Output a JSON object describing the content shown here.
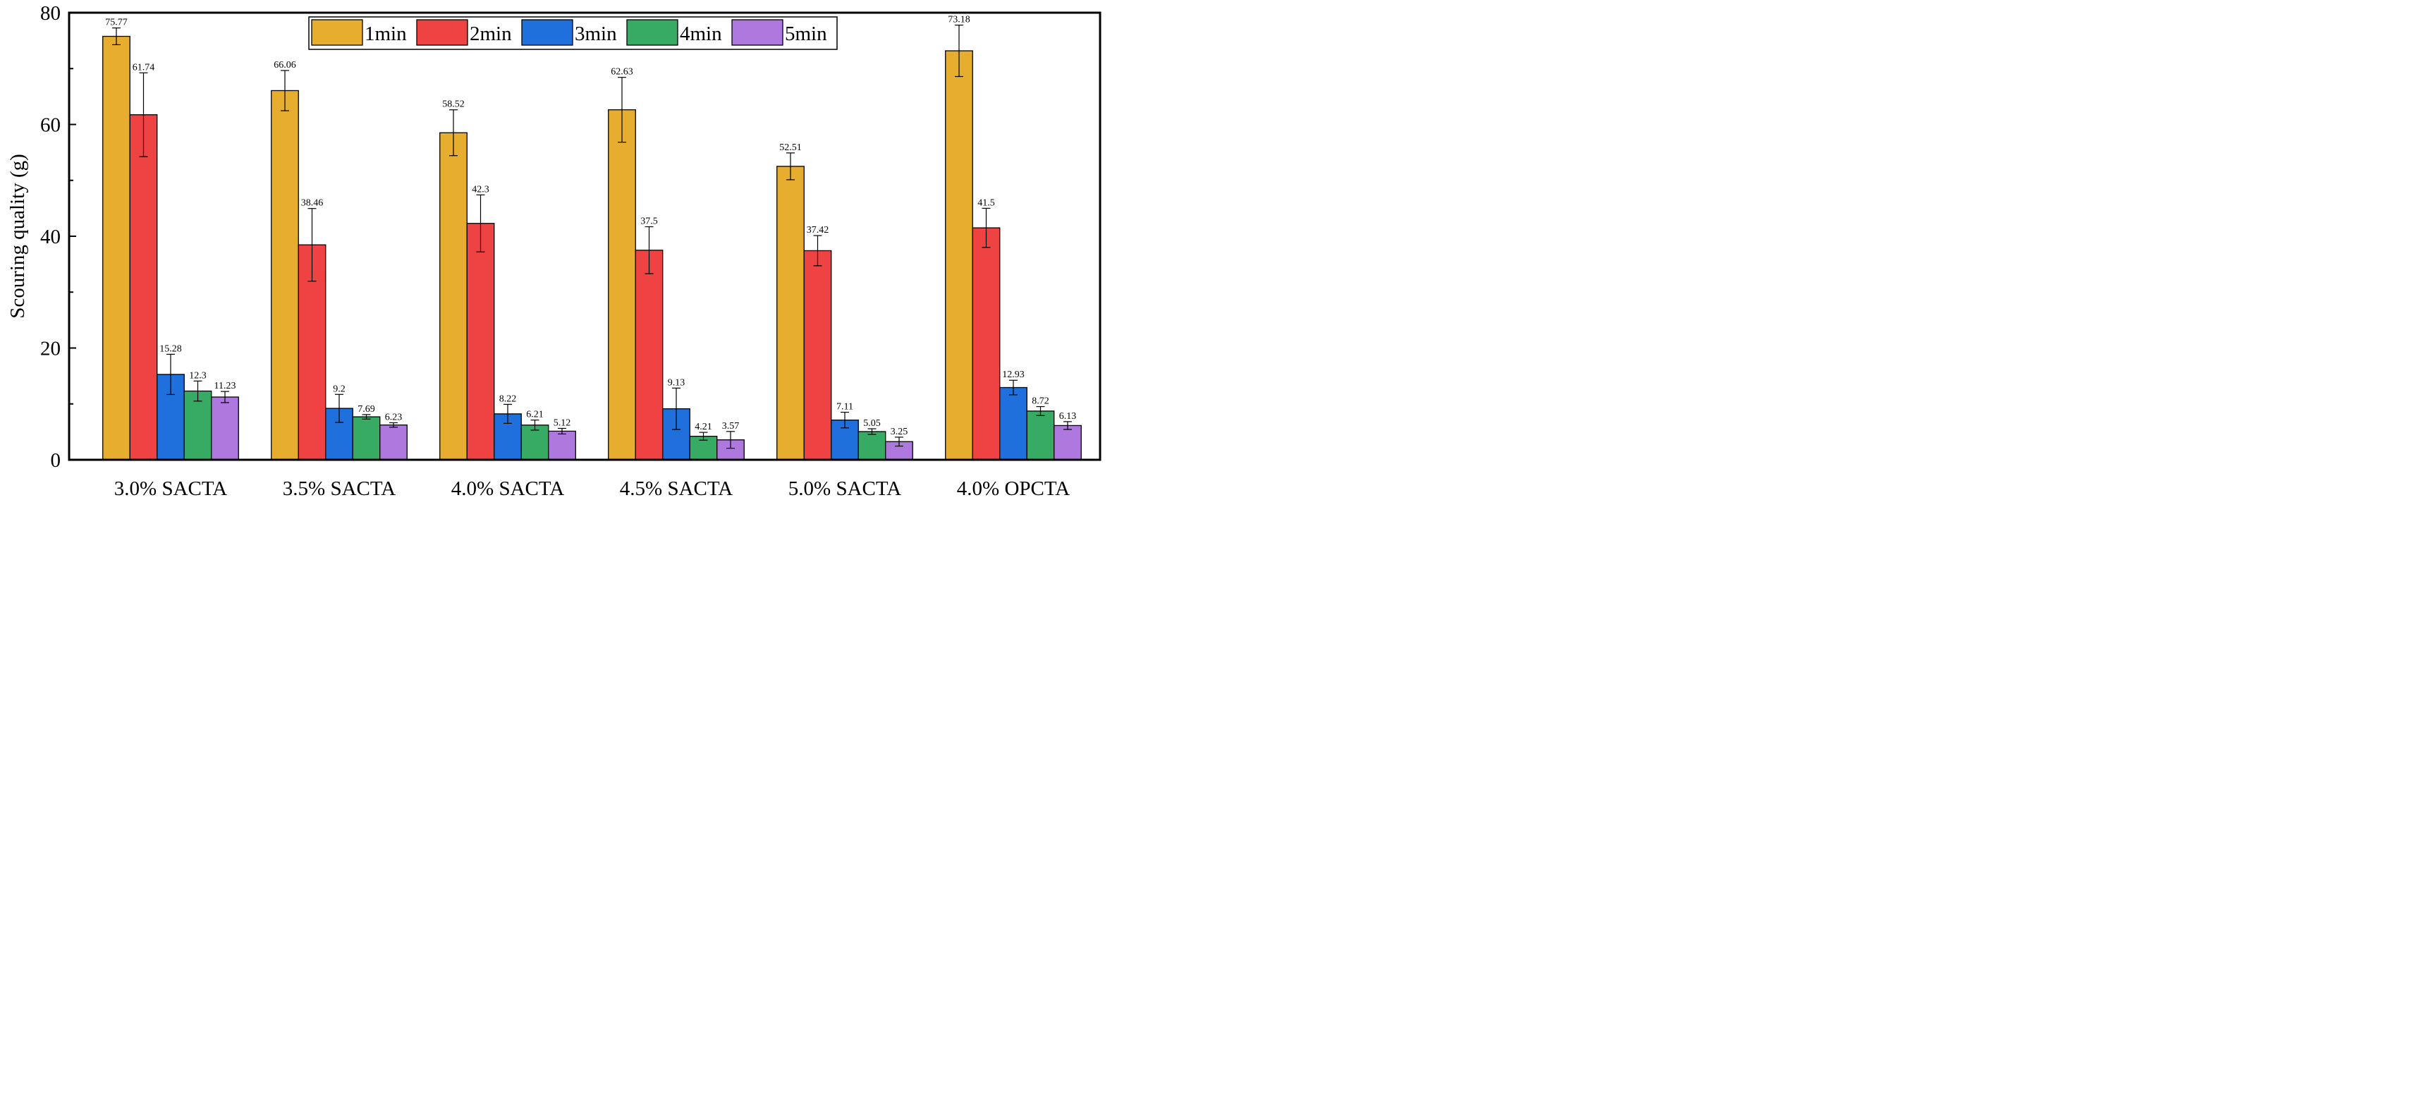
{
  "chart_data": {
    "type": "bar",
    "title": "",
    "xlabel": "",
    "ylabel": "Scouring quality (g)",
    "ylim": [
      0,
      80
    ],
    "yticks": [
      0,
      20,
      40,
      60,
      80
    ],
    "grid": false,
    "legend_position": "top-center",
    "categories": [
      "3.0% SACTA",
      "3.5% SACTA",
      "4.0% SACTA",
      "4.5% SACTA",
      "5.0% SACTA",
      "4.0% OPCTA"
    ],
    "series": [
      {
        "name": "1min",
        "color": "#E7AD2F",
        "values": [
          75.77,
          66.06,
          58.52,
          62.63,
          52.51,
          73.18
        ],
        "labels": [
          "75.77",
          "66.06",
          "58.52",
          "62.63",
          "52.51",
          "73.18"
        ],
        "errors": [
          1.5,
          3.6,
          4.1,
          5.8,
          2.4,
          4.6
        ]
      },
      {
        "name": "2min",
        "color": "#EE4342",
        "values": [
          61.74,
          38.46,
          42.3,
          37.5,
          37.42,
          41.5
        ],
        "labels": [
          "61.74",
          "38.46",
          "42.3",
          "37.5",
          "37.42",
          "41.5"
        ],
        "errors": [
          7.5,
          6.5,
          5.1,
          4.2,
          2.7,
          3.5
        ]
      },
      {
        "name": "3min",
        "color": "#1F6FDC",
        "values": [
          15.28,
          9.2,
          8.22,
          9.13,
          7.11,
          12.93
        ],
        "labels": [
          "15.28",
          "9.2",
          "8.22",
          "9.13",
          "7.11",
          "12.93"
        ],
        "errors": [
          3.6,
          2.5,
          1.7,
          3.7,
          1.4,
          1.3
        ]
      },
      {
        "name": "4min",
        "color": "#37AB63",
        "values": [
          12.3,
          7.69,
          6.21,
          4.21,
          5.05,
          8.72
        ],
        "labels": [
          "12.3",
          "7.69",
          "6.21",
          "4.21",
          "5.05",
          "8.72"
        ],
        "errors": [
          1.8,
          0.4,
          0.9,
          0.7,
          0.5,
          0.8
        ]
      },
      {
        "name": "5min",
        "color": "#AF78DF",
        "values": [
          11.23,
          6.23,
          5.12,
          3.57,
          3.25,
          6.13
        ],
        "labels": [
          "11.23",
          "6.23",
          "5.12",
          "3.57",
          "3.25",
          "6.13"
        ],
        "errors": [
          1.0,
          0.4,
          0.5,
          1.5,
          0.8,
          0.7
        ]
      }
    ]
  }
}
